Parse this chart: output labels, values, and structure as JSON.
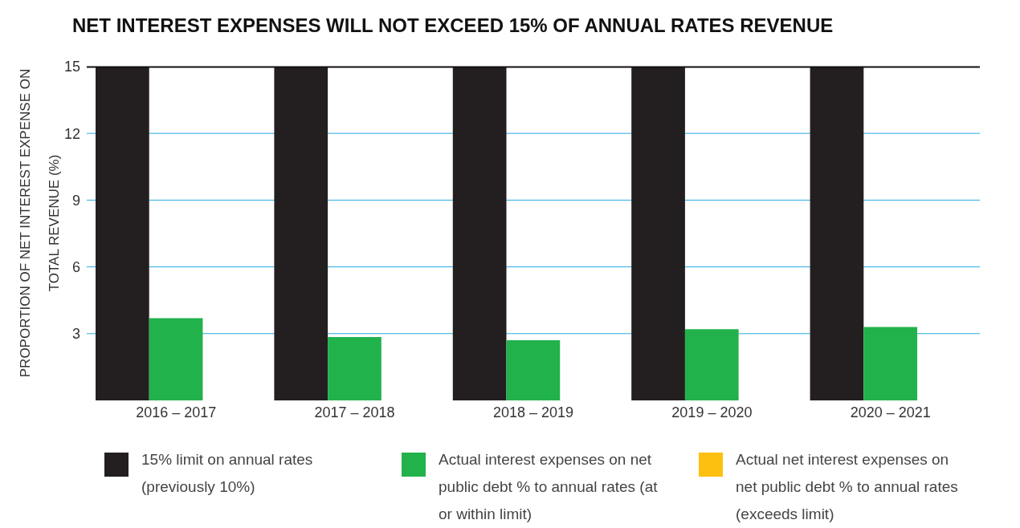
{
  "chart_data": {
    "type": "bar",
    "title": "NET INTEREST EXPENSES WILL NOT EXCEED 15% OF ANNUAL RATES REVENUE",
    "ylabel": "PROPORTION OF NET INTEREST EXPENSE ON TOTAL REVENUE (%)",
    "categories": [
      "2016 – 2017",
      "2017 – 2018",
      "2018 – 2019",
      "2019 – 2020",
      "2020 – 2021"
    ],
    "series": [
      {
        "name": "15% limit on annual rates (previously 10%)",
        "color": "#231f20",
        "values": [
          15,
          15,
          15,
          15,
          15
        ]
      },
      {
        "name": "Actual interest expenses on net public debt % to annual rates (at or within limit)",
        "color": "#22b24c",
        "values": [
          3.7,
          2.85,
          2.7,
          3.2,
          3.3
        ]
      },
      {
        "name": "Actual net interest expenses on net public debt % to annual rates (exceeds limit)",
        "color": "#fdc010",
        "values": [
          null,
          null,
          null,
          null,
          null
        ]
      }
    ],
    "ylim": [
      0,
      15
    ],
    "yticks": [
      3,
      6,
      9,
      12,
      15
    ],
    "grid": "y",
    "legend": "bottom"
  }
}
